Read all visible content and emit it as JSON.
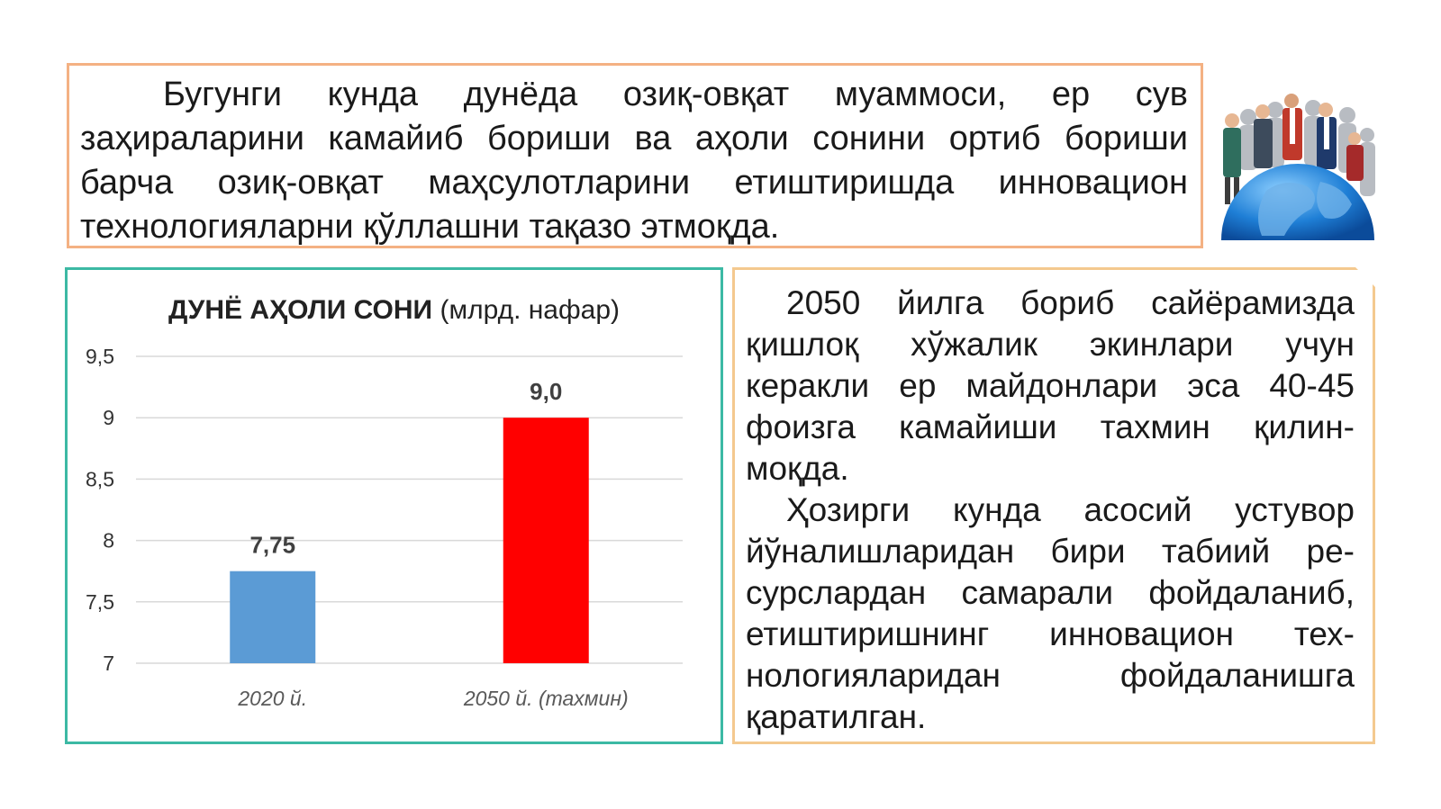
{
  "top_paragraph": "Бугунги кунда дунёда озиқ-овқат муаммоси, ер сув заҳираларини камайиб бориши ва аҳоли сонини ортиб бориши барча озиқ-овқат маҳсулотларини етиштиришда инновацион технологияларни қўллашни тақазо этмоқда.",
  "right_paragraph_1": "2050 йилга бориб сайёрамизда қишлоқ хўжалик экинлари учун керакли ер майдонлари эса 40-45 фоизга камайиши тахмин қилин-моқда.",
  "right_paragraph_2": "Ҳозирги кунда асосий устувор йўналишларидан бири табиий ре-сурслардан самарали фойдаланиб, етиштиришнинг инновацион тех-нологияларидан фойдаланишга қаратилган.",
  "chart_data": {
    "type": "bar",
    "title_bold": "ДУНЁ АҲОЛИ СОНИ",
    "title_unit": "(млрд. нафар)",
    "categories": [
      "2020 й.",
      "2050 й. (тахмин)"
    ],
    "values": [
      7.75,
      9.0
    ],
    "data_labels": [
      "7,75",
      "9,0"
    ],
    "bar_colors": [
      "#5b9bd5",
      "#ff0000"
    ],
    "ylim": [
      7,
      9.5
    ],
    "yticks": [
      7,
      7.5,
      8,
      8.5,
      9,
      9.5
    ],
    "ytick_labels": [
      "7",
      "7,5",
      "8",
      "8,5",
      "9",
      "9,5"
    ],
    "grid": true,
    "xlabel": "",
    "ylabel": ""
  },
  "colors": {
    "top_border": "#f4b183",
    "chart_border": "#3cb9a4",
    "right_border": "#f4c98f"
  },
  "illustration": "people-on-globe-image"
}
